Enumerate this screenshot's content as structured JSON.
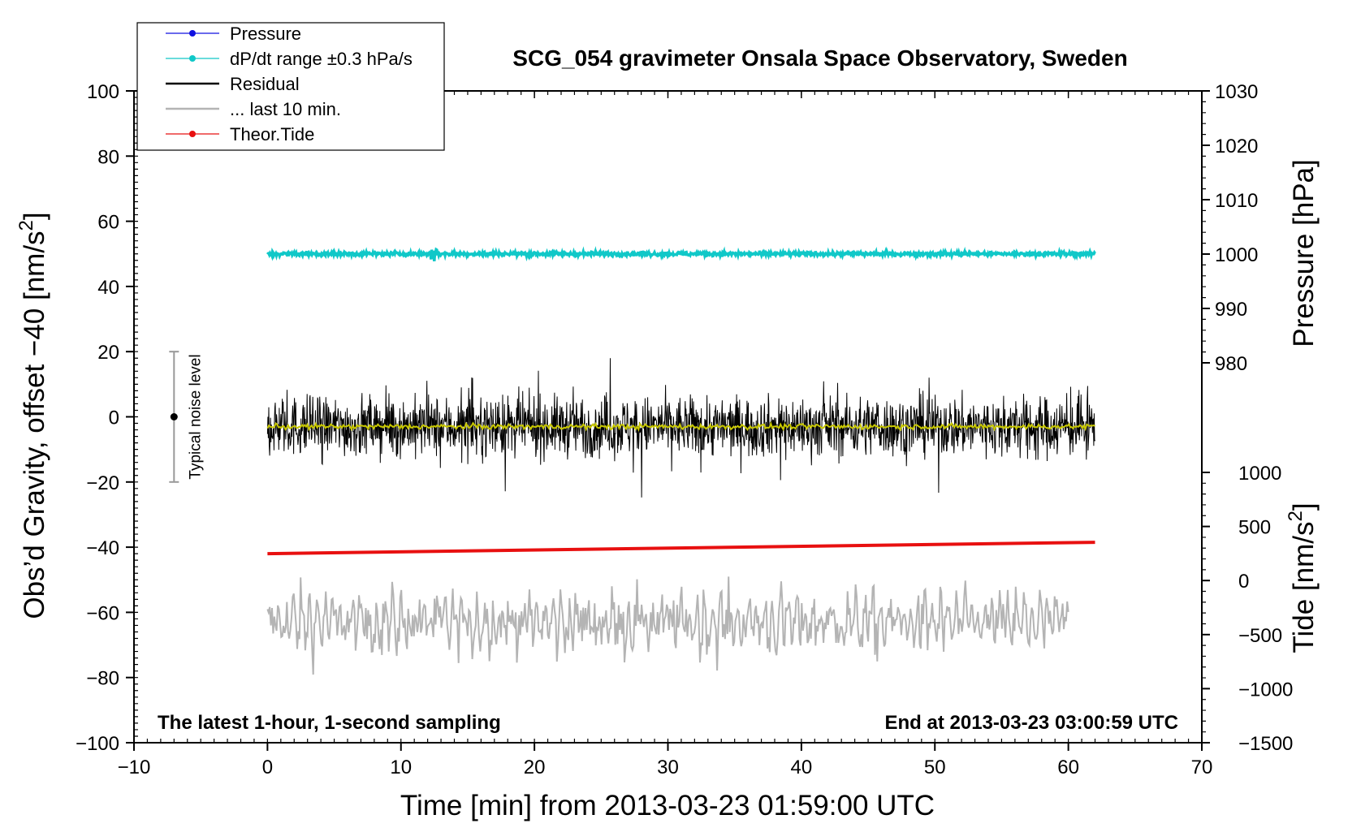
{
  "chart_data": {
    "type": "line",
    "title": "SCG_054 gravimeter Onsala Space Observatory, Sweden",
    "xlabel": "Time [min] from 2013-03-23 01:59:00 UTC",
    "ylabel_left": "Obs'd Gravity, offset −40 [nm/s²]",
    "ylabel_left_parts": {
      "main": "Obs’d Gravity, offset −40 [nm/s",
      "sup": "2",
      "end": "]"
    },
    "ylabel_right_top": "Pressure [hPa]",
    "ylabel_right_bottom": "Tide [nm/s²]",
    "ylabel_right_bottom_parts": {
      "main": "Tide [nm/s",
      "sup": "2",
      "end": "]"
    },
    "xlim": [
      -10,
      70
    ],
    "ylim": [
      -100,
      100
    ],
    "x_ticks": [
      "−10",
      "0",
      "10",
      "20",
      "30",
      "40",
      "50",
      "60",
      "70"
    ],
    "x_tick_values": [
      -10,
      0,
      10,
      20,
      30,
      40,
      50,
      60,
      70
    ],
    "y_ticks_left": [
      "100",
      "80",
      "60",
      "40",
      "20",
      "0",
      "−20",
      "−40",
      "−60",
      "−80",
      "−100"
    ],
    "y_tick_values_left": [
      100,
      80,
      60,
      40,
      20,
      0,
      -20,
      -40,
      -60,
      -80,
      -100
    ],
    "pressure_axis": {
      "ticks": [
        "1030",
        "1020",
        "1010",
        "1000",
        "990",
        "980"
      ],
      "values": [
        1030,
        1020,
        1010,
        1000,
        990,
        980
      ],
      "range": [
        980,
        1030
      ]
    },
    "tide_axis": {
      "ticks": [
        "1000",
        "500",
        "0",
        "−500",
        "−1000",
        "−1500"
      ],
      "values": [
        1000,
        500,
        0,
        -500,
        -1000,
        -1500
      ],
      "range": [
        -1500,
        1000
      ]
    },
    "legend": [
      {
        "label": "Pressure",
        "color": "#1010e0",
        "marker": true
      },
      {
        "label": "dP/dt range ±0.3 hPa/s",
        "color": "#10c8c8",
        "marker": true
      },
      {
        "label": "Residual",
        "color": "#000000",
        "marker": false
      },
      {
        "label": "... last 10 min.",
        "color": "#b4b4b4",
        "marker": false
      },
      {
        "label": "Theor.Tide",
        "color": "#e81010",
        "marker": true
      }
    ],
    "series": [
      {
        "name": "dP/dt range",
        "color": "#10c8c8",
        "level_y": 50,
        "x_range": [
          0,
          62
        ]
      },
      {
        "name": "Residual",
        "color": "#000000",
        "center_y": -3,
        "x_range": [
          0,
          62
        ]
      },
      {
        "name": "Residual smoothed",
        "color": "#c8c800",
        "center_y": -3,
        "x_range": [
          0,
          62
        ]
      },
      {
        "name": "Theor.Tide",
        "color": "#e81010",
        "x": [
          0,
          62
        ],
        "y": [
          -42,
          -38.5
        ]
      },
      {
        "name": "... last 10 min.",
        "color": "#b4b4b4",
        "center_y": -63,
        "x_range": [
          0,
          60
        ]
      }
    ],
    "noise_bar": {
      "label": "Typical noise level",
      "x": -7,
      "y": 0,
      "ymin": -20,
      "ymax": 20
    },
    "annotations": {
      "left": "The latest 1-hour, 1-second sampling",
      "right": "End at 2013-03-23 03:00:59 UTC"
    }
  }
}
